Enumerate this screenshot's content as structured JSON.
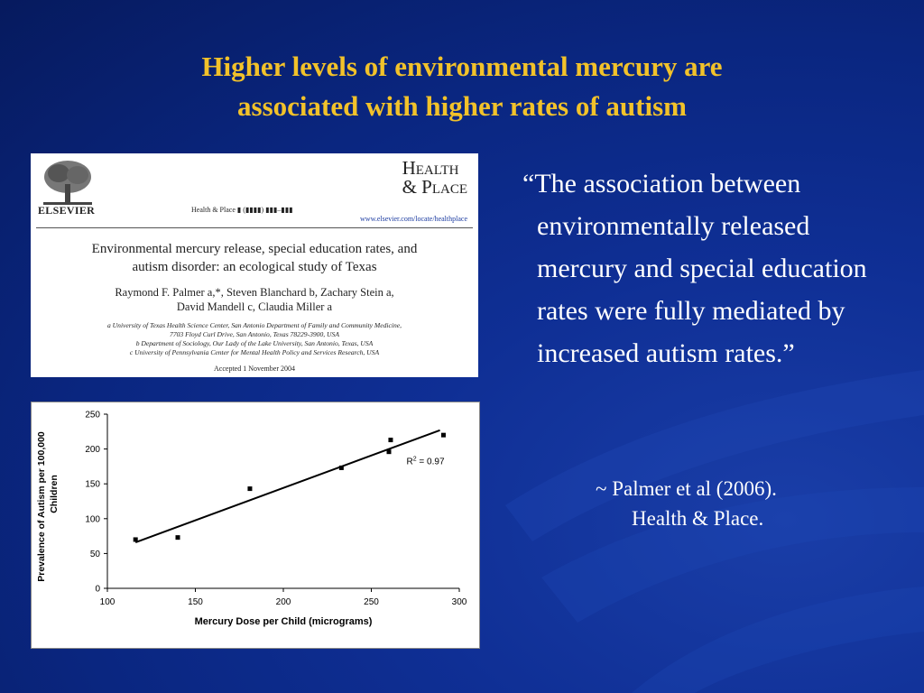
{
  "slide": {
    "title_line1": "Higher levels of  environmental mercury are",
    "title_line2": "associated with higher rates of  autism",
    "colors": {
      "background": "#0f2f95",
      "title": "#f2c22a",
      "text": "#ffffff"
    }
  },
  "paper": {
    "publisher": "ELSEVIER",
    "citation": "Health & Place ▮ (▮▮▮▮) ▮▮▮–▮▮▮",
    "journal_line1": "Health",
    "journal_line2": "& Place",
    "journal_url": "www.elsevier.com/locate/healthplace",
    "title_line1": "Environmental mercury release, special education rates, and",
    "title_line2": "autism disorder: an ecological study of Texas",
    "authors_line1": "Raymond F. Palmer a,*, Steven Blanchard b, Zachary Stein a,",
    "authors_line2": "David Mandell c, Claudia Miller a",
    "affiliation_a": "a University of Texas Health Science Center, San Antonio Department of Family and Community Medicine,",
    "affiliation_a2": "7703 Floyd Curl Drive, San Antonio, Texas 78229-3900, USA",
    "affiliation_b": "b Department of Sociology, Our Lady of the Lake University, San Antonio, Texas, USA",
    "affiliation_c": "c University of Pennsylvania Center for Mental Health Policy and Services Research, USA",
    "accepted": "Accepted 1 November 2004",
    "publisher_logo_icon": "tree-logo-icon"
  },
  "chart_data": {
    "type": "scatter",
    "xlabel": "Mercury Dose per Child (micrograms)",
    "ylabel_line1": "Prevalence of Autism per 100,000",
    "ylabel_line2": "Children",
    "xlim": [
      100,
      300
    ],
    "ylim": [
      0,
      250
    ],
    "x_ticks": [
      "100",
      "150",
      "200",
      "250",
      "300"
    ],
    "y_ticks": [
      "0",
      "50",
      "100",
      "150",
      "200",
      "250"
    ],
    "points": [
      {
        "x": 116,
        "y": 70
      },
      {
        "x": 140,
        "y": 73
      },
      {
        "x": 181,
        "y": 143
      },
      {
        "x": 233,
        "y": 173
      },
      {
        "x": 260,
        "y": 196
      },
      {
        "x": 261,
        "y": 213
      },
      {
        "x": 291,
        "y": 220
      }
    ],
    "trendline": {
      "x": [
        116,
        289
      ],
      "y": [
        66,
        227
      ]
    },
    "annotation": "R2 = 0.97",
    "grid": false,
    "legend": "none"
  },
  "quote": {
    "text": "“The association between environmentally released mercury and special education rates were fully mediated by increased autism rates.”",
    "attribution_line1": "~ Palmer et al (2006).",
    "attribution_line2": "Health & Place."
  }
}
